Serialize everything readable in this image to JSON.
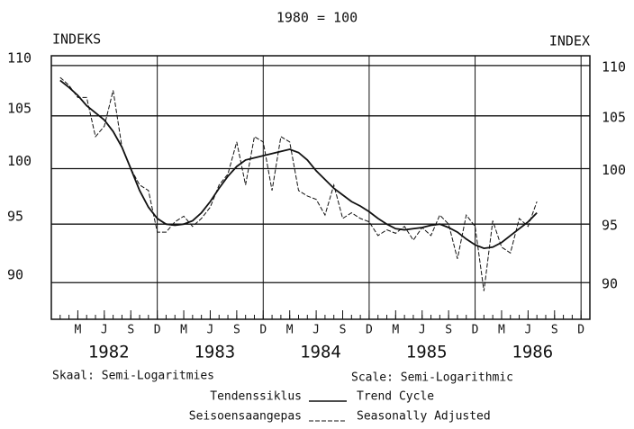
{
  "chart_data": {
    "type": "line",
    "title": "1980 = 100",
    "y_label_left": "INDEKS",
    "y_label_right": "INDEX",
    "log_scale": true,
    "grid": true,
    "x": [
      1,
      2,
      3,
      4,
      5,
      6,
      7,
      8,
      9,
      10,
      11,
      12,
      13,
      14,
      15,
      16,
      17,
      18,
      19,
      20,
      21,
      22,
      23,
      24,
      25,
      26,
      27,
      28,
      29,
      30,
      31,
      32,
      33,
      34,
      35,
      36,
      37,
      38,
      39,
      40,
      41,
      42,
      43,
      44,
      45,
      46,
      47,
      48,
      49,
      50,
      51,
      52,
      53,
      54,
      55
    ],
    "xlim": [
      0,
      61
    ],
    "xminor": 1,
    "xticks": [
      {
        "value": 3,
        "label": "M"
      },
      {
        "value": 6,
        "label": "J"
      },
      {
        "value": 9,
        "label": "S"
      },
      {
        "value": 12,
        "label": "D"
      },
      {
        "value": 15,
        "label": "M"
      },
      {
        "value": 18,
        "label": "J"
      },
      {
        "value": 21,
        "label": "S"
      },
      {
        "value": 24,
        "label": "D"
      },
      {
        "value": 27,
        "label": "M"
      },
      {
        "value": 30,
        "label": "J"
      },
      {
        "value": 33,
        "label": "S"
      },
      {
        "value": 36,
        "label": "D"
      },
      {
        "value": 39,
        "label": "M"
      },
      {
        "value": 42,
        "label": "J"
      },
      {
        "value": 45,
        "label": "S"
      },
      {
        "value": 48,
        "label": "D"
      },
      {
        "value": 51,
        "label": "M"
      },
      {
        "value": 54,
        "label": "J"
      },
      {
        "value": 57,
        "label": "S"
      },
      {
        "value": 60,
        "label": "D"
      }
    ],
    "xgrid": [
      12,
      24,
      36,
      48,
      60
    ],
    "year_labels": [
      {
        "value": 6.5,
        "label": "1982"
      },
      {
        "value": 18.5,
        "label": "1983"
      },
      {
        "value": 30.5,
        "label": "1984"
      },
      {
        "value": 42.5,
        "label": "1985"
      },
      {
        "value": 54.5,
        "label": "1986"
      }
    ],
    "ylim": [
      87,
      111
    ],
    "yticks": [
      90,
      95,
      100,
      105,
      110
    ],
    "series": [
      {
        "name": "Trend Cycle",
        "name_af": "Tendenssiklus",
        "color": "#111",
        "dash": false,
        "values": [
          108.5,
          107.8,
          107,
          106,
          105.3,
          104.6,
          103.5,
          102,
          100,
          98,
          96.5,
          95.5,
          95,
          94.9,
          95,
          95.3,
          96,
          97,
          98.2,
          99.3,
          100.2,
          100.8,
          101,
          101.2,
          101.4,
          101.6,
          101.8,
          101.5,
          100.8,
          99.8,
          99,
          98.2,
          97.6,
          97,
          96.6,
          96.1,
          95.5,
          95,
          94.6,
          94.5,
          94.6,
          94.7,
          94.9,
          95,
          94.7,
          94.3,
          93.7,
          93.2,
          92.9,
          93,
          93.4,
          94,
          94.6,
          95.2,
          96
        ]
      },
      {
        "name": "Seasonally Adjusted",
        "name_af": "Seisoensaangepas",
        "color": "#111",
        "dash": true,
        "values": [
          108.8,
          108,
          106.8,
          106.8,
          103,
          104,
          107.5,
          102,
          100,
          98.5,
          98,
          94.3,
          94.3,
          95.2,
          95.7,
          94.8,
          95.5,
          96.5,
          98.5,
          99.5,
          102.5,
          98.5,
          103,
          102.5,
          98,
          103,
          102.5,
          98,
          97.5,
          97.2,
          95.8,
          98.5,
          95.5,
          96,
          95.5,
          95.2,
          94,
          94.5,
          94.2,
          94.8,
          93.6,
          94.7,
          94,
          95.8,
          95,
          92,
          95.8,
          94.8,
          89.3,
          95.3,
          93,
          92.5,
          95.5,
          94.8,
          97
        ]
      }
    ],
    "scale_note_af": "Skaal: Semi-Logaritmies",
    "scale_note_en": "Scale: Semi-Logarithmic"
  }
}
